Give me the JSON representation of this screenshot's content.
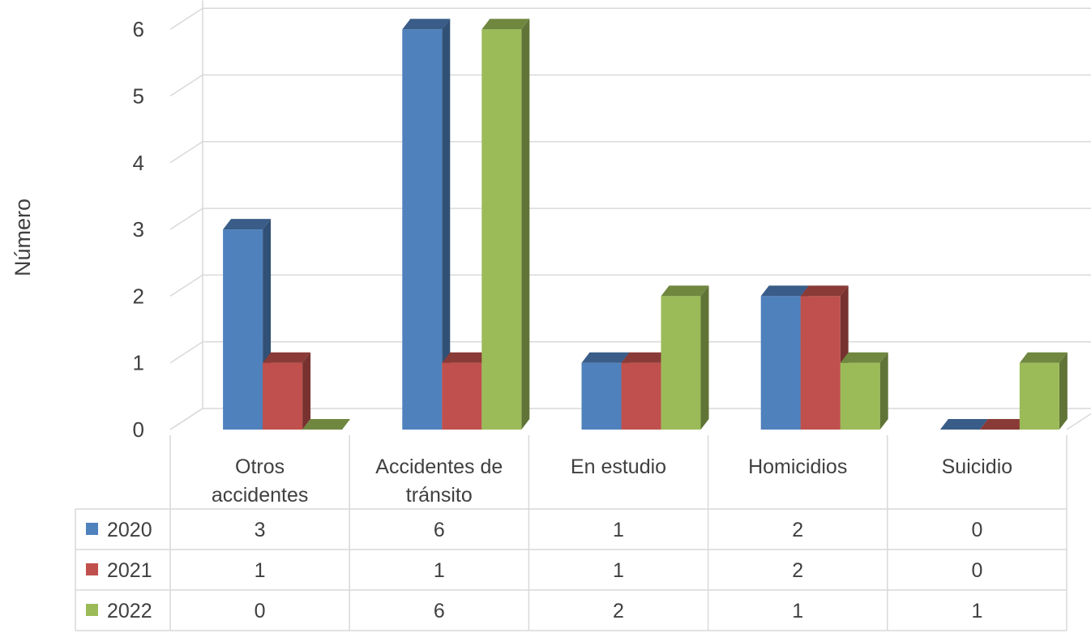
{
  "chart_data": {
    "type": "bar",
    "style": "3d-clustered-column-with-data-table",
    "ylabel": "Número",
    "xlabel": "",
    "title": "",
    "ylim": [
      0,
      6
    ],
    "yticks": [
      0,
      1,
      2,
      3,
      4,
      5,
      6
    ],
    "categories": [
      [
        "Otros",
        "accidentes"
      ],
      [
        "Accidentes de",
        "tránsito"
      ],
      [
        "En estudio"
      ],
      [
        "Homicidios"
      ],
      [
        "Suicidio"
      ]
    ],
    "series": [
      {
        "name": "2020",
        "color": "#4F81BD",
        "values": [
          3,
          6,
          1,
          2,
          0
        ]
      },
      {
        "name": "2021",
        "color": "#C0504D",
        "values": [
          1,
          1,
          1,
          2,
          0
        ]
      },
      {
        "name": "2022",
        "color": "#9BBB59",
        "values": [
          0,
          6,
          2,
          1,
          1
        ]
      }
    ],
    "grid": true,
    "legend": "data-table-rows"
  }
}
